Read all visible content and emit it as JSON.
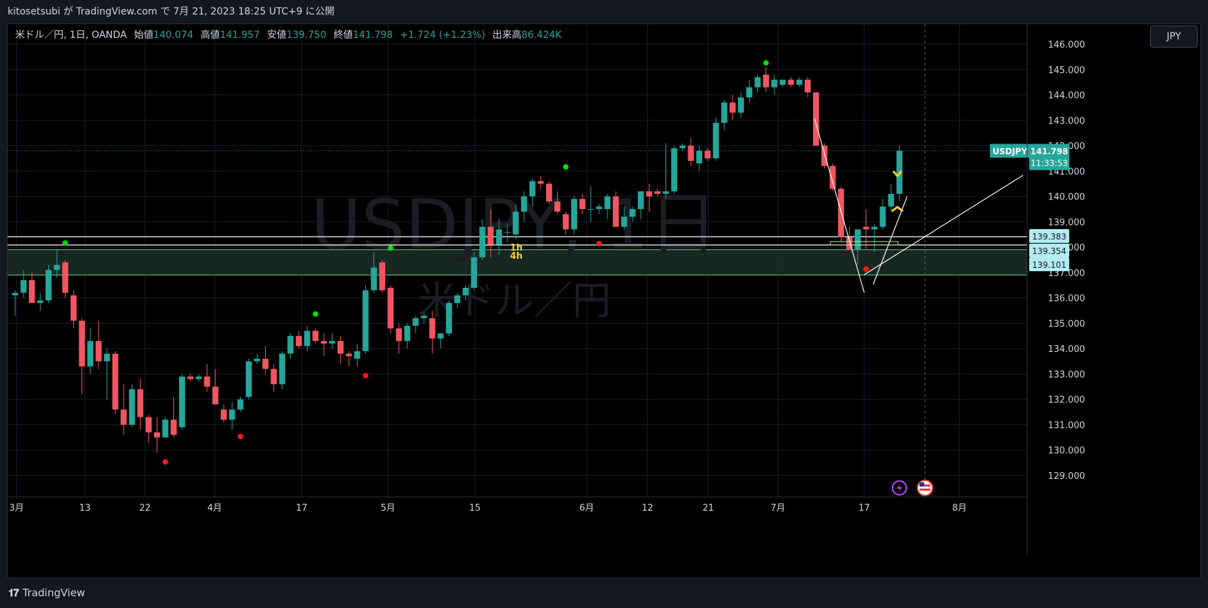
{
  "header": {
    "publish_line": "kitosetsubi が TradingView.com で 7月 21, 2023 18:25 UTC+9 に公開"
  },
  "legend": {
    "symbol_desc": "米ドル／円, 1日, OANDA",
    "open_label": "始値",
    "open": "140.074",
    "high_label": "高値",
    "high": "141.957",
    "low_label": "安値",
    "low": "139.750",
    "close_label": "終値",
    "close": "141.798",
    "change": "+1.724 (+1.23%)",
    "volume_label": "出来高",
    "volume": "86.424K"
  },
  "currency_button": "JPY",
  "watermark": {
    "symbol": "USDJPY, 1日",
    "desc": "米ドル／円"
  },
  "footer": {
    "brand": "TradingView"
  },
  "colors": {
    "up": "#26a69a",
    "down": "#f05662",
    "background": "#000000",
    "grid": "#1a1e29",
    "zone": "#1c2b27",
    "zone_border": "#5bd68a",
    "price_tag": "#26a69a",
    "level_tag": "#b2ebf2"
  },
  "chart_data": {
    "type": "candlestick",
    "symbol": "USDJPY",
    "interval": "1日",
    "ylim": [
      128.4,
      146.5
    ],
    "y_ticks": [
      "146.000",
      "145.000",
      "144.000",
      "143.000",
      "142.000",
      "141.000",
      "140.000",
      "139.000",
      "138.000",
      "137.000",
      "136.000",
      "135.000",
      "134.000",
      "133.000",
      "132.000",
      "131.000",
      "130.000",
      "129.000"
    ],
    "x_ticks": [
      "3月",
      "13",
      "22",
      "4月",
      "17",
      "5月",
      "15",
      "6月",
      "12",
      "21",
      "7月",
      "17",
      "8月"
    ],
    "candles": [
      {
        "o": 136.1,
        "h": 136.3,
        "l": 135.3,
        "c": 136.2
      },
      {
        "o": 136.2,
        "h": 137.1,
        "l": 136.0,
        "c": 136.7
      },
      {
        "o": 136.7,
        "h": 137.0,
        "l": 135.8,
        "c": 135.8
      },
      {
        "o": 135.8,
        "h": 136.2,
        "l": 135.5,
        "c": 135.9
      },
      {
        "o": 135.9,
        "h": 137.3,
        "l": 135.8,
        "c": 137.1
      },
      {
        "o": 137.1,
        "h": 137.9,
        "l": 136.8,
        "c": 137.3
      },
      {
        "o": 137.4,
        "h": 137.5,
        "l": 136.0,
        "c": 136.2
      },
      {
        "o": 136.1,
        "h": 136.3,
        "l": 134.8,
        "c": 135.1
      },
      {
        "o": 135.1,
        "h": 135.2,
        "l": 132.2,
        "c": 133.3
      },
      {
        "o": 133.3,
        "h": 134.8,
        "l": 133.0,
        "c": 134.3
      },
      {
        "o": 134.3,
        "h": 135.1,
        "l": 133.2,
        "c": 133.5
      },
      {
        "o": 133.5,
        "h": 134.0,
        "l": 132.0,
        "c": 133.8
      },
      {
        "o": 133.8,
        "h": 133.9,
        "l": 131.4,
        "c": 131.6
      },
      {
        "o": 131.6,
        "h": 132.6,
        "l": 130.6,
        "c": 131.0
      },
      {
        "o": 131.0,
        "h": 132.6,
        "l": 130.9,
        "c": 132.4
      },
      {
        "o": 132.4,
        "h": 132.8,
        "l": 130.8,
        "c": 131.3
      },
      {
        "o": 131.3,
        "h": 131.4,
        "l": 130.3,
        "c": 130.7
      },
      {
        "o": 130.7,
        "h": 131.3,
        "l": 129.9,
        "c": 130.5
      },
      {
        "o": 130.5,
        "h": 131.3,
        "l": 130.5,
        "c": 131.2
      },
      {
        "o": 131.2,
        "h": 132.1,
        "l": 130.5,
        "c": 130.6
      },
      {
        "o": 130.9,
        "h": 133.0,
        "l": 130.8,
        "c": 132.9
      },
      {
        "o": 132.9,
        "h": 133.0,
        "l": 132.7,
        "c": 132.8
      },
      {
        "o": 132.8,
        "h": 133.0,
        "l": 132.7,
        "c": 132.9
      },
      {
        "o": 132.9,
        "h": 133.4,
        "l": 132.3,
        "c": 132.5
      },
      {
        "o": 132.5,
        "h": 133.2,
        "l": 131.9,
        "c": 131.8
      },
      {
        "o": 131.6,
        "h": 131.8,
        "l": 131.1,
        "c": 131.2
      },
      {
        "o": 131.2,
        "h": 131.9,
        "l": 130.8,
        "c": 131.6
      },
      {
        "o": 131.6,
        "h": 132.1,
        "l": 131.5,
        "c": 132.0
      },
      {
        "o": 132.1,
        "h": 133.6,
        "l": 132.0,
        "c": 133.5
      },
      {
        "o": 133.5,
        "h": 133.8,
        "l": 133.4,
        "c": 133.6
      },
      {
        "o": 133.6,
        "h": 134.1,
        "l": 133.0,
        "c": 133.2
      },
      {
        "o": 133.2,
        "h": 133.4,
        "l": 132.3,
        "c": 132.6
      },
      {
        "o": 132.6,
        "h": 133.9,
        "l": 132.4,
        "c": 133.8
      },
      {
        "o": 133.8,
        "h": 134.6,
        "l": 133.6,
        "c": 134.5
      },
      {
        "o": 134.5,
        "h": 134.7,
        "l": 134.0,
        "c": 134.1
      },
      {
        "o": 134.1,
        "h": 134.9,
        "l": 133.9,
        "c": 134.7
      },
      {
        "o": 134.7,
        "h": 134.8,
        "l": 134.2,
        "c": 134.3
      },
      {
        "o": 134.3,
        "h": 134.6,
        "l": 133.7,
        "c": 134.2
      },
      {
        "o": 134.2,
        "h": 134.6,
        "l": 134.0,
        "c": 134.3
      },
      {
        "o": 134.3,
        "h": 134.5,
        "l": 133.4,
        "c": 133.8
      },
      {
        "o": 133.8,
        "h": 133.9,
        "l": 133.3,
        "c": 133.7
      },
      {
        "o": 133.6,
        "h": 134.2,
        "l": 133.3,
        "c": 133.9
      },
      {
        "o": 133.9,
        "h": 136.5,
        "l": 133.8,
        "c": 136.3
      },
      {
        "o": 136.3,
        "h": 137.8,
        "l": 136.2,
        "c": 137.2
      },
      {
        "o": 137.4,
        "h": 137.5,
        "l": 136.2,
        "c": 136.3
      },
      {
        "o": 136.4,
        "h": 136.5,
        "l": 134.6,
        "c": 134.8
      },
      {
        "o": 134.8,
        "h": 135.0,
        "l": 133.8,
        "c": 134.3
      },
      {
        "o": 134.3,
        "h": 135.0,
        "l": 134.0,
        "c": 134.9
      },
      {
        "o": 134.9,
        "h": 135.3,
        "l": 134.6,
        "c": 135.2
      },
      {
        "o": 135.2,
        "h": 135.4,
        "l": 135.0,
        "c": 135.3
      },
      {
        "o": 135.2,
        "h": 135.5,
        "l": 133.8,
        "c": 134.4
      },
      {
        "o": 134.4,
        "h": 134.6,
        "l": 134.0,
        "c": 134.6
      },
      {
        "o": 134.6,
        "h": 135.9,
        "l": 134.5,
        "c": 135.8
      },
      {
        "o": 135.8,
        "h": 136.2,
        "l": 135.6,
        "c": 136.1
      },
      {
        "o": 136.1,
        "h": 136.5,
        "l": 135.9,
        "c": 136.4
      },
      {
        "o": 136.4,
        "h": 137.8,
        "l": 136.3,
        "c": 137.6
      },
      {
        "o": 137.6,
        "h": 139.1,
        "l": 137.5,
        "c": 138.8
      },
      {
        "o": 138.8,
        "h": 139.5,
        "l": 137.6,
        "c": 138.1
      },
      {
        "o": 138.1,
        "h": 139.1,
        "l": 137.7,
        "c": 138.7
      },
      {
        "o": 138.6,
        "h": 138.9,
        "l": 138.2,
        "c": 138.6
      },
      {
        "o": 138.5,
        "h": 139.7,
        "l": 138.3,
        "c": 139.4
      },
      {
        "o": 139.4,
        "h": 140.2,
        "l": 139.0,
        "c": 140.0
      },
      {
        "o": 140.0,
        "h": 140.7,
        "l": 139.6,
        "c": 140.6
      },
      {
        "o": 140.6,
        "h": 140.8,
        "l": 140.3,
        "c": 140.5
      },
      {
        "o": 140.5,
        "h": 140.6,
        "l": 139.7,
        "c": 139.8
      },
      {
        "o": 139.8,
        "h": 140.2,
        "l": 139.3,
        "c": 139.4
      },
      {
        "o": 139.3,
        "h": 139.4,
        "l": 138.5,
        "c": 138.7
      },
      {
        "o": 138.7,
        "h": 140.0,
        "l": 138.5,
        "c": 139.9
      },
      {
        "o": 139.9,
        "h": 140.1,
        "l": 139.3,
        "c": 139.5
      },
      {
        "o": 139.5,
        "h": 140.4,
        "l": 139.0,
        "c": 139.5
      },
      {
        "o": 139.5,
        "h": 139.7,
        "l": 139.3,
        "c": 139.6
      },
      {
        "o": 139.5,
        "h": 140.1,
        "l": 139.1,
        "c": 140.0
      },
      {
        "o": 140.0,
        "h": 140.2,
        "l": 138.8,
        "c": 138.8
      },
      {
        "o": 138.8,
        "h": 139.6,
        "l": 138.7,
        "c": 139.2
      },
      {
        "o": 139.2,
        "h": 139.6,
        "l": 139.0,
        "c": 139.5
      },
      {
        "o": 139.5,
        "h": 140.2,
        "l": 139.1,
        "c": 140.2
      },
      {
        "o": 140.2,
        "h": 140.5,
        "l": 139.4,
        "c": 140.0
      },
      {
        "o": 140.2,
        "h": 140.3,
        "l": 140.0,
        "c": 140.1
      },
      {
        "o": 140.1,
        "h": 142.1,
        "l": 139.9,
        "c": 140.2
      },
      {
        "o": 140.2,
        "h": 142.0,
        "l": 140.1,
        "c": 141.9
      },
      {
        "o": 141.9,
        "h": 142.1,
        "l": 141.8,
        "c": 142.0
      },
      {
        "o": 142.0,
        "h": 142.3,
        "l": 141.2,
        "c": 141.4
      },
      {
        "o": 141.3,
        "h": 142.0,
        "l": 141.0,
        "c": 141.8
      },
      {
        "o": 141.8,
        "h": 141.9,
        "l": 141.4,
        "c": 141.5
      },
      {
        "o": 141.5,
        "h": 143.1,
        "l": 141.4,
        "c": 142.9
      },
      {
        "o": 142.9,
        "h": 143.8,
        "l": 142.6,
        "c": 143.7
      },
      {
        "o": 143.7,
        "h": 144.0,
        "l": 143.0,
        "c": 143.3
      },
      {
        "o": 143.3,
        "h": 144.1,
        "l": 143.1,
        "c": 143.9
      },
      {
        "o": 143.9,
        "h": 144.6,
        "l": 143.7,
        "c": 144.3
      },
      {
        "o": 144.3,
        "h": 144.8,
        "l": 144.1,
        "c": 144.7
      },
      {
        "o": 144.8,
        "h": 145.1,
        "l": 144.1,
        "c": 144.3
      },
      {
        "o": 144.3,
        "h": 144.8,
        "l": 144.0,
        "c": 144.6
      },
      {
        "o": 144.4,
        "h": 144.6,
        "l": 144.3,
        "c": 144.6
      },
      {
        "o": 144.6,
        "h": 144.7,
        "l": 144.3,
        "c": 144.4
      },
      {
        "o": 144.4,
        "h": 144.7,
        "l": 144.3,
        "c": 144.6
      },
      {
        "o": 144.6,
        "h": 144.7,
        "l": 143.9,
        "c": 144.1
      },
      {
        "o": 144.1,
        "h": 144.1,
        "l": 142.0,
        "c": 142.0
      },
      {
        "o": 142.0,
        "h": 142.1,
        "l": 141.1,
        "c": 141.2
      },
      {
        "o": 141.2,
        "h": 141.3,
        "l": 140.2,
        "c": 140.3
      },
      {
        "o": 140.3,
        "h": 140.4,
        "l": 138.2,
        "c": 138.4
      },
      {
        "o": 138.4,
        "h": 138.8,
        "l": 137.9,
        "c": 137.9
      },
      {
        "o": 137.9,
        "h": 138.7,
        "l": 137.3,
        "c": 138.7
      },
      {
        "o": 138.8,
        "h": 139.5,
        "l": 137.9,
        "c": 138.7
      },
      {
        "o": 138.7,
        "h": 138.9,
        "l": 137.8,
        "c": 138.8
      },
      {
        "o": 138.8,
        "h": 139.9,
        "l": 138.7,
        "c": 139.6
      },
      {
        "o": 139.6,
        "h": 140.5,
        "l": 139.4,
        "c": 140.1
      },
      {
        "o": 140.1,
        "h": 142.0,
        "l": 139.8,
        "c": 141.8
      }
    ],
    "swing_high_markers": [
      {
        "index": 6,
        "value": 138.0
      },
      {
        "index": 45,
        "value": 137.8
      },
      {
        "index": 36,
        "value": 135.2
      },
      {
        "index": 66,
        "value": 141.0
      },
      {
        "index": 90,
        "value": 145.1
      }
    ],
    "swing_low_markers": [
      {
        "index": 18,
        "value": 129.7
      },
      {
        "index": 27,
        "value": 130.7
      },
      {
        "index": 42,
        "value": 133.1
      },
      {
        "index": 70,
        "value": 138.3
      },
      {
        "index": 102,
        "value": 137.3
      }
    ],
    "support_zone": [
      136.9,
      137.9
    ],
    "horizontal_levels": [
      {
        "value": 139.383,
        "label": "139.383"
      },
      {
        "value": 139.354,
        "label": "139.354"
      },
      {
        "value": 139.101,
        "label": "139.101"
      }
    ],
    "current_price": {
      "symbol": "USDJPY",
      "price": "141.798",
      "countdown": "11:33:53",
      "value": 141.798
    },
    "annotation_text": [
      "1h",
      "4h"
    ]
  }
}
